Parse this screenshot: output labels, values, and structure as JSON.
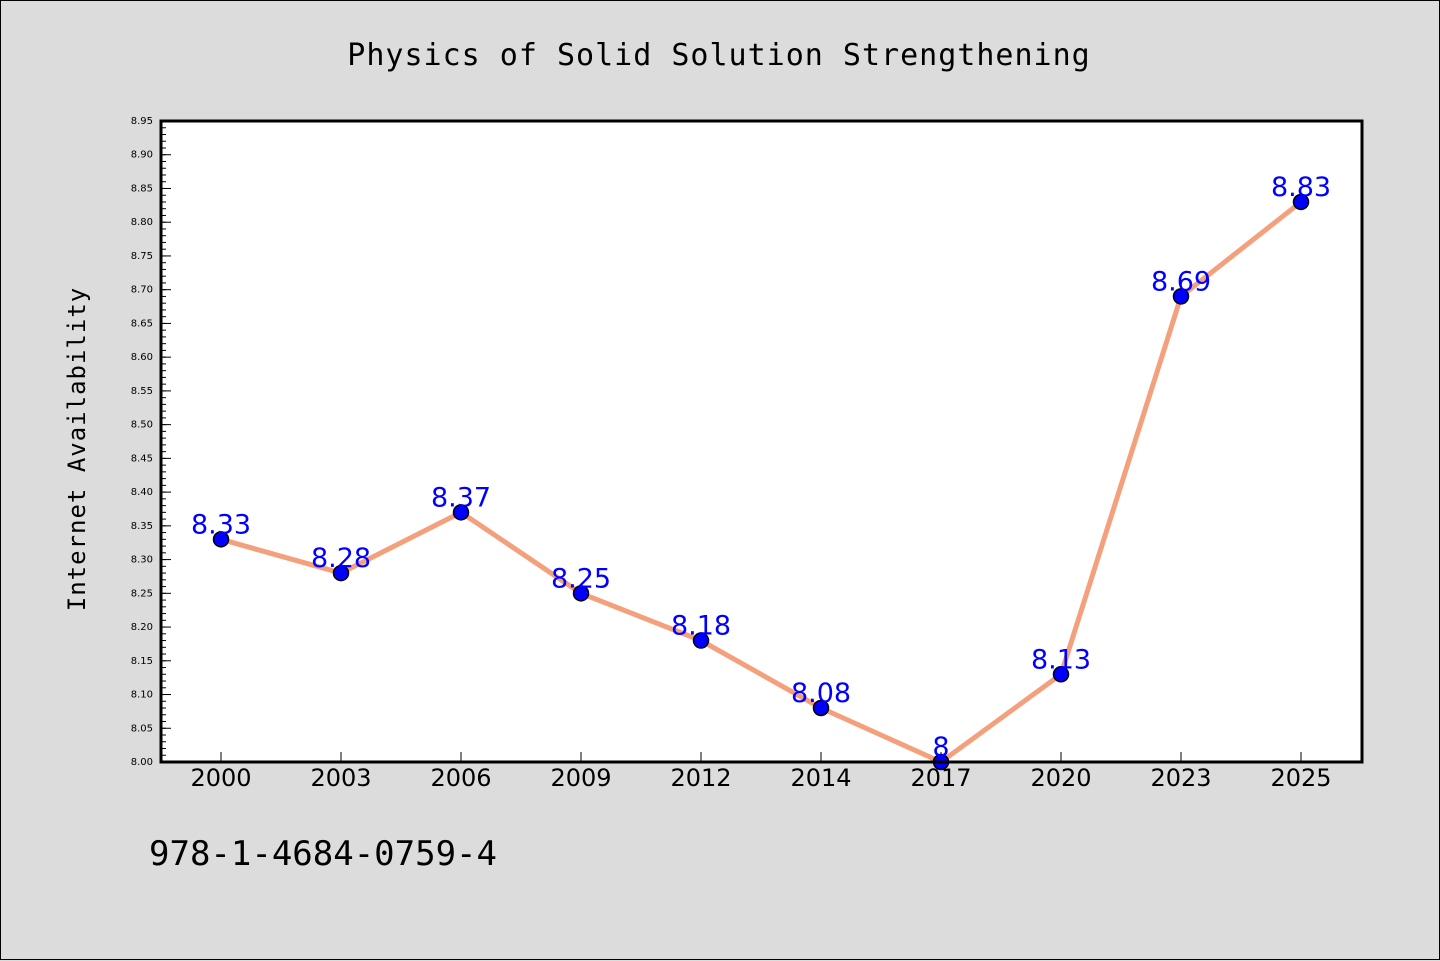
{
  "chart_data": {
    "type": "line",
    "title": "Physics of Solid Solution Strengthening",
    "xlabel": "",
    "ylabel": "Internet Availability",
    "categories": [
      "2000",
      "2003",
      "2006",
      "2009",
      "2012",
      "2014",
      "2017",
      "2020",
      "2023",
      "2025"
    ],
    "series": [
      {
        "values": [
          8.33,
          8.28,
          8.37,
          8.25,
          8.18,
          8.08,
          8.0,
          8.13,
          8.69,
          8.83
        ]
      }
    ],
    "data_labels": [
      "8.33",
      "8.28",
      "8.37",
      "8.25",
      "8.18",
      "8.08",
      "8",
      "8.13",
      "8.69",
      "8.83"
    ],
    "ylim": [
      8.0,
      8.95
    ],
    "yticks": [
      "8.00",
      "8.05",
      "8.10",
      "8.15",
      "8.20",
      "8.25",
      "8.30",
      "8.35",
      "8.40",
      "8.45",
      "8.50",
      "8.55",
      "8.60",
      "8.65",
      "8.70",
      "8.75",
      "8.80",
      "8.85",
      "8.90",
      "8.95"
    ],
    "grid": false,
    "legend": "none",
    "colors": {
      "line": "#f4a07c",
      "marker": "#0000ff",
      "label": "#0000ff",
      "background": "#dcdcdc",
      "plot_area": "#ffffff"
    }
  },
  "annotation": {
    "isbn": "978-1-4684-0759-4"
  }
}
